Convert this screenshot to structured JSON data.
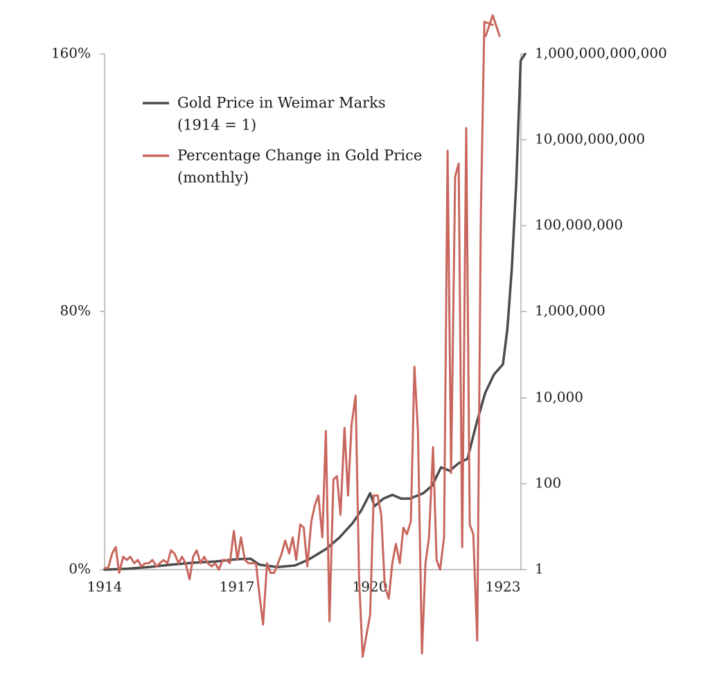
{
  "chart_data": {
    "type": "line",
    "title": "",
    "xlabel": "",
    "x_ticks": [
      "1914",
      "1917",
      "1920",
      "1923"
    ],
    "xlim": [
      1914,
      1923.4
    ],
    "y_left": {
      "ticks": [
        "0%",
        "80%",
        "160%"
      ],
      "ylim": [
        0,
        160
      ]
    },
    "y_right": {
      "scale": "log",
      "ticks": [
        "1",
        "100",
        "10,000",
        "1,000,000",
        "100,000,000",
        "10,000,000,000",
        "1,000,000,000,000"
      ],
      "ylim": [
        1,
        1000000000000
      ]
    },
    "legend_position": "top-left",
    "series": [
      {
        "name": "Gold Price in Weimar Marks (1914 = 1)",
        "legend_lines": [
          "Gold Price in Weimar Marks",
          "(1914 = 1)"
        ],
        "axis": "right",
        "color": "#4a4a4a",
        "points": [
          [
            1914.0,
            1
          ],
          [
            1914.5,
            1.05
          ],
          [
            1915.0,
            1.15
          ],
          [
            1915.5,
            1.3
          ],
          [
            1916.0,
            1.45
          ],
          [
            1916.5,
            1.55
          ],
          [
            1917.0,
            1.75
          ],
          [
            1917.3,
            1.8
          ],
          [
            1917.5,
            1.3
          ],
          [
            1917.9,
            1.15
          ],
          [
            1918.3,
            1.25
          ],
          [
            1918.6,
            1.7
          ],
          [
            1919.0,
            3.0
          ],
          [
            1919.3,
            5.5
          ],
          [
            1919.6,
            12
          ],
          [
            1919.8,
            24
          ],
          [
            1920.0,
            60
          ],
          [
            1920.1,
            30
          ],
          [
            1920.3,
            45
          ],
          [
            1920.5,
            55
          ],
          [
            1920.7,
            45
          ],
          [
            1920.9,
            45
          ],
          [
            1921.2,
            60
          ],
          [
            1921.4,
            90
          ],
          [
            1921.6,
            240
          ],
          [
            1921.8,
            200
          ],
          [
            1922.0,
            300
          ],
          [
            1922.2,
            380
          ],
          [
            1922.4,
            2500
          ],
          [
            1922.6,
            13000
          ],
          [
            1922.8,
            35000
          ],
          [
            1923.0,
            60000
          ],
          [
            1923.1,
            400000
          ],
          [
            1923.2,
            10000000
          ],
          [
            1923.3,
            1000000000
          ],
          [
            1923.4,
            700000000000
          ],
          [
            1923.5,
            1000000000000
          ]
        ]
      },
      {
        "name": "Percentage Change in Gold Price (monthly)",
        "legend_lines": [
          "Percentage Change in Gold Price",
          "(monthly)"
        ],
        "axis": "left",
        "color": "#c8665d",
        "points": [
          [
            1914.0,
            0.5
          ],
          [
            1914.08,
            0.5
          ],
          [
            1914.17,
            5
          ],
          [
            1914.25,
            7
          ],
          [
            1914.33,
            -1
          ],
          [
            1914.42,
            4
          ],
          [
            1914.5,
            3
          ],
          [
            1914.58,
            4
          ],
          [
            1914.67,
            2
          ],
          [
            1914.75,
            3
          ],
          [
            1914.83,
            1
          ],
          [
            1914.92,
            2
          ],
          [
            1915.0,
            2
          ],
          [
            1915.08,
            3
          ],
          [
            1915.17,
            1
          ],
          [
            1915.25,
            2
          ],
          [
            1915.33,
            3
          ],
          [
            1915.42,
            2
          ],
          [
            1915.5,
            6
          ],
          [
            1915.58,
            5
          ],
          [
            1915.67,
            2
          ],
          [
            1915.75,
            4
          ],
          [
            1915.83,
            2
          ],
          [
            1915.92,
            -3
          ],
          [
            1916.0,
            4
          ],
          [
            1916.08,
            6
          ],
          [
            1916.17,
            2
          ],
          [
            1916.25,
            4
          ],
          [
            1916.33,
            2
          ],
          [
            1916.42,
            1
          ],
          [
            1916.5,
            2
          ],
          [
            1916.58,
            0
          ],
          [
            1916.67,
            3
          ],
          [
            1916.75,
            3
          ],
          [
            1916.83,
            2
          ],
          [
            1916.92,
            12
          ],
          [
            1917.0,
            3
          ],
          [
            1917.08,
            10
          ],
          [
            1917.17,
            3
          ],
          [
            1917.25,
            2
          ],
          [
            1917.33,
            2
          ],
          [
            1917.42,
            2
          ],
          [
            1917.5,
            -8
          ],
          [
            1917.58,
            -17
          ],
          [
            1917.67,
            2
          ],
          [
            1917.75,
            -1
          ],
          [
            1917.83,
            -1
          ],
          [
            1917.92,
            2
          ],
          [
            1918.0,
            5
          ],
          [
            1918.08,
            9
          ],
          [
            1918.17,
            5
          ],
          [
            1918.25,
            10
          ],
          [
            1918.33,
            3
          ],
          [
            1918.42,
            14
          ],
          [
            1918.5,
            13
          ],
          [
            1918.58,
            1
          ],
          [
            1918.67,
            15
          ],
          [
            1918.75,
            20
          ],
          [
            1918.83,
            23
          ],
          [
            1918.92,
            10
          ],
          [
            1919.0,
            43
          ],
          [
            1919.08,
            -16
          ],
          [
            1919.17,
            28
          ],
          [
            1919.25,
            29
          ],
          [
            1919.33,
            17
          ],
          [
            1919.42,
            44
          ],
          [
            1919.5,
            23
          ],
          [
            1919.58,
            45
          ],
          [
            1919.67,
            54
          ],
          [
            1919.75,
            -3
          ],
          [
            1919.83,
            -27
          ],
          [
            1919.92,
            -20
          ],
          [
            1920.0,
            -14
          ],
          [
            1920.08,
            23
          ],
          [
            1920.17,
            23
          ],
          [
            1920.25,
            17
          ],
          [
            1920.33,
            -5
          ],
          [
            1920.42,
            -9
          ],
          [
            1920.5,
            2
          ],
          [
            1920.58,
            8
          ],
          [
            1920.67,
            2
          ],
          [
            1920.75,
            13
          ],
          [
            1920.83,
            11
          ],
          [
            1920.92,
            15
          ],
          [
            1921.0,
            63
          ],
          [
            1921.08,
            43
          ],
          [
            1921.17,
            -26
          ],
          [
            1921.25,
            2
          ],
          [
            1921.33,
            10
          ],
          [
            1921.42,
            38
          ],
          [
            1921.5,
            3
          ],
          [
            1921.58,
            0
          ],
          [
            1921.67,
            10
          ],
          [
            1921.75,
            130
          ],
          [
            1921.83,
            30
          ],
          [
            1921.92,
            122
          ],
          [
            1922.0,
            126
          ],
          [
            1922.08,
            7
          ],
          [
            1922.17,
            137
          ],
          [
            1922.25,
            14
          ],
          [
            1922.33,
            11
          ],
          [
            1922.42,
            -22
          ],
          [
            1922.5,
            110
          ],
          [
            1922.58,
            170
          ]
        ]
      }
    ]
  }
}
